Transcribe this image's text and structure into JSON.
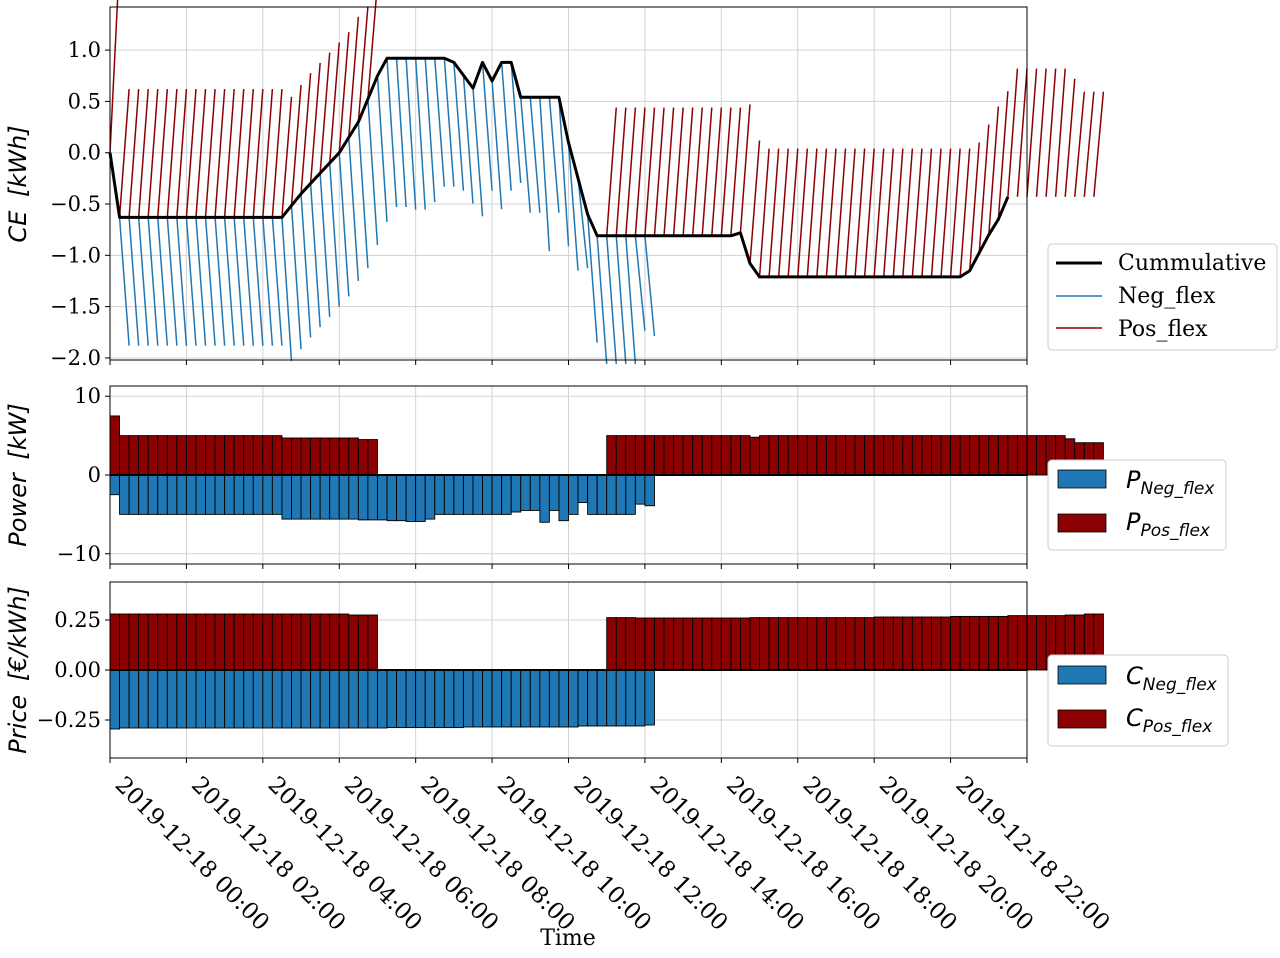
{
  "x_label": "Time",
  "x_ticks": [
    "2019-12-18 00:00",
    "2019-12-18 02:00",
    "2019-12-18 04:00",
    "2019-12-18 06:00",
    "2019-12-18 08:00",
    "2019-12-18 10:00",
    "2019-12-18 12:00",
    "2019-12-18 14:00",
    "2019-12-18 16:00",
    "2019-12-18 18:00",
    "2019-12-18 20:00",
    "2019-12-18 22:00"
  ],
  "colors": {
    "neg": "#1f77b4",
    "pos": "#8b0000",
    "cum": "#000000",
    "grid": "#d3d3d3"
  },
  "chart_data": [
    {
      "type": "line",
      "ylabel_main": "CE",
      "ylabel_unit": "[kWh]",
      "ylim": [
        -2.02,
        1.42
      ],
      "yticks": [
        -2.0,
        -1.5,
        -1.0,
        -0.5,
        0.0,
        0.5,
        1.0
      ],
      "ytick_labels": [
        "−2.0",
        "−1.5",
        "−1.0",
        "−0.5",
        "0.0",
        "0.5",
        "1.0"
      ],
      "xlim_hours": [
        0,
        24
      ],
      "grid": true,
      "legend": {
        "position": "right",
        "entries": [
          "Cummulative",
          "Neg_flex",
          "Pos_flex"
        ]
      },
      "cumulative": [
        [
          0,
          0.0
        ],
        [
          0.25,
          -0.63
        ],
        [
          0.5,
          -0.63
        ],
        [
          1,
          -0.63
        ],
        [
          2,
          -0.63
        ],
        [
          3,
          -0.63
        ],
        [
          4,
          -0.63
        ],
        [
          4.5,
          -0.63
        ],
        [
          5,
          -0.4
        ],
        [
          5.5,
          -0.2
        ],
        [
          6,
          0.0
        ],
        [
          6.5,
          0.3
        ],
        [
          7,
          0.75
        ],
        [
          7.25,
          0.92
        ],
        [
          7.5,
          0.92
        ],
        [
          8,
          0.92
        ],
        [
          8.5,
          0.92
        ],
        [
          8.75,
          0.92
        ],
        [
          9,
          0.88
        ],
        [
          9.5,
          0.63
        ],
        [
          9.75,
          0.88
        ],
        [
          10,
          0.7
        ],
        [
          10.25,
          0.88
        ],
        [
          10.5,
          0.88
        ],
        [
          10.75,
          0.54
        ],
        [
          11,
          0.54
        ],
        [
          11.5,
          0.54
        ],
        [
          11.75,
          0.54
        ],
        [
          12,
          0.1
        ],
        [
          12.5,
          -0.6
        ],
        [
          12.75,
          -0.81
        ],
        [
          13,
          -0.81
        ],
        [
          14,
          -0.81
        ],
        [
          15,
          -0.81
        ],
        [
          16,
          -0.81
        ],
        [
          16.25,
          -0.81
        ],
        [
          16.5,
          -0.78
        ],
        [
          16.75,
          -1.08
        ],
        [
          17,
          -1.21
        ],
        [
          17.5,
          -1.21
        ],
        [
          18,
          -1.21
        ],
        [
          19,
          -1.21
        ],
        [
          20,
          -1.21
        ],
        [
          21,
          -1.21
        ],
        [
          22,
          -1.21
        ],
        [
          22.25,
          -1.21
        ],
        [
          22.5,
          -1.15
        ],
        [
          23,
          -0.8
        ],
        [
          23.25,
          -0.65
        ],
        [
          23.5,
          -0.43
        ]
      ]
    },
    {
      "type": "bar",
      "ylabel_main": "Power",
      "ylabel_unit": "[kW]",
      "ylim": [
        -11.3,
        11.3
      ],
      "yticks": [
        -10,
        0,
        10
      ],
      "ytick_labels": [
        "−10",
        "0",
        "10"
      ],
      "legend": {
        "position": "right",
        "entries": [
          "P",
          "P"
        ],
        "subscripts": [
          "Neg_flex",
          "Pos_flex"
        ]
      },
      "bar_width_hours": 0.25,
      "pos_segments": [
        {
          "start": 0,
          "values": [
            7.5,
            5,
            5,
            5,
            5,
            5,
            5,
            5,
            5,
            5,
            5,
            5,
            5,
            5,
            5,
            5,
            5,
            5,
            4.7,
            4.7,
            4.7,
            4.7,
            4.7,
            4.7,
            4.7,
            4.7,
            4.5,
            4.5
          ]
        },
        {
          "start": 13,
          "values": [
            5,
            5,
            5,
            5,
            5,
            5,
            5,
            5,
            5,
            5,
            5,
            5,
            5,
            5,
            5,
            4.8
          ]
        },
        {
          "start": 17,
          "values": [
            5,
            5,
            5,
            5,
            5,
            5,
            5,
            5,
            5,
            5,
            5,
            5,
            5,
            5,
            5,
            5,
            5,
            5,
            5,
            5,
            5,
            5,
            5,
            5,
            5,
            5,
            5,
            5,
            5,
            5,
            5,
            5,
            4.6,
            4.1,
            4.1,
            4.1
          ]
        }
      ],
      "neg_segments": [
        {
          "start": 0,
          "values": [
            -2.5,
            -5,
            -5,
            -5,
            -5,
            -5,
            -5,
            -5,
            -5,
            -5,
            -5,
            -5,
            -5,
            -5,
            -5,
            -5,
            -5,
            -5,
            -5.6,
            -5.6,
            -5.6,
            -5.6,
            -5.6,
            -5.6,
            -5.6,
            -5.6,
            -5.7,
            -5.7,
            -5.7,
            -5.8,
            -5.8,
            -5.9,
            -5.9,
            -5.6,
            -5,
            -5,
            -5,
            -5,
            -5,
            -5,
            -5,
            -5,
            -4.7,
            -4.5,
            -4.5,
            -6.0,
            -4.5,
            -5.8,
            -5.0,
            -3.5,
            -5,
            -5,
            -5,
            -5,
            -5,
            -3.7,
            -3.9
          ]
        }
      ]
    },
    {
      "type": "bar",
      "ylabel_main": "Price",
      "ylabel_unit": "[€/kWh]",
      "ylim": [
        -0.44,
        0.44
      ],
      "yticks": [
        -0.25,
        0.0,
        0.25
      ],
      "ytick_labels": [
        "−0.25",
        "0.00",
        "0.25"
      ],
      "legend": {
        "position": "right",
        "entries": [
          "C",
          "C"
        ],
        "subscripts": [
          "Neg_flex",
          "Pos_flex"
        ]
      },
      "bar_width_hours": 0.25,
      "pos_segments": [
        {
          "start": 0,
          "values": [
            0.28,
            0.28,
            0.28,
            0.28,
            0.28,
            0.28,
            0.28,
            0.28,
            0.28,
            0.28,
            0.28,
            0.28,
            0.28,
            0.28,
            0.28,
            0.28,
            0.28,
            0.28,
            0.28,
            0.28,
            0.28,
            0.28,
            0.28,
            0.28,
            0.28,
            0.275,
            0.275,
            0.275
          ]
        },
        {
          "start": 13,
          "values": [
            0.262,
            0.262,
            0.262,
            0.26,
            0.26,
            0.26,
            0.26,
            0.26,
            0.26,
            0.26,
            0.26,
            0.26,
            0.26,
            0.26,
            0.26,
            0.262
          ]
        },
        {
          "start": 17,
          "values": [
            0.262,
            0.262,
            0.262,
            0.262,
            0.262,
            0.262,
            0.262,
            0.262,
            0.262,
            0.262,
            0.262,
            0.262,
            0.265,
            0.265,
            0.265,
            0.265,
            0.265,
            0.265,
            0.265,
            0.265,
            0.268,
            0.268,
            0.268,
            0.268,
            0.268,
            0.268,
            0.272,
            0.272,
            0.272,
            0.272,
            0.272,
            0.272,
            0.275,
            0.275,
            0.28,
            0.28
          ]
        }
      ],
      "neg_segments": [
        {
          "start": 0,
          "values": [
            -0.295,
            -0.29,
            -0.29,
            -0.29,
            -0.29,
            -0.29,
            -0.29,
            -0.29,
            -0.29,
            -0.29,
            -0.29,
            -0.29,
            -0.29,
            -0.29,
            -0.29,
            -0.29,
            -0.29,
            -0.29,
            -0.29,
            -0.29,
            -0.29,
            -0.29,
            -0.29,
            -0.29,
            -0.29,
            -0.29,
            -0.29,
            -0.29,
            -0.29,
            -0.288,
            -0.288,
            -0.288,
            -0.288,
            -0.288,
            -0.288,
            -0.288,
            -0.288,
            -0.285,
            -0.285,
            -0.285,
            -0.285,
            -0.285,
            -0.285,
            -0.285,
            -0.285,
            -0.285,
            -0.285,
            -0.285,
            -0.285,
            -0.28,
            -0.28,
            -0.28,
            -0.28,
            -0.28,
            -0.28,
            -0.28,
            -0.275
          ]
        }
      ]
    }
  ]
}
